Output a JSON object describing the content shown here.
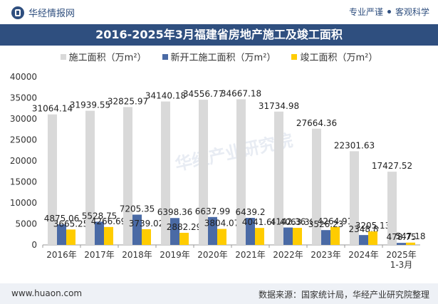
{
  "header": {
    "brand": "华经情报网",
    "tag1": "专业严谨",
    "tag2": "客观科学"
  },
  "footer": {
    "website": "www.huaon.com",
    "source": "数据来源：国家统计局，华经产业研究院整理"
  },
  "watermark": "华经产业研究院",
  "colors": {
    "series1": "#d9d9d9",
    "series2": "#4a6aa5",
    "series3": "#ffcc00",
    "title_bg": "#2f4f7f"
  },
  "chart_data": {
    "type": "bar",
    "title": "2016-2025年3月福建省房地产施工及竣工面积",
    "categories": [
      "2016年",
      "2017年",
      "2018年",
      "2019年",
      "2020年",
      "2021年",
      "2022年",
      "2023年",
      "2024年",
      "2025年 1-3月"
    ],
    "series": [
      {
        "name": "施工面积（万m²）",
        "values": [
          31064.14,
          31939.55,
          32825.97,
          34140.18,
          34556.77,
          34667.18,
          31734.98,
          27664.36,
          22301.63,
          17427.52
        ]
      },
      {
        "name": "新开工施工面积（万m²）",
        "values": [
          4875.06,
          5528.75,
          7205.35,
          6398.36,
          6637.99,
          6439.2,
          4142.36,
          3526.23,
          2348.8,
          478.75
        ]
      },
      {
        "name": "竣工面积（万m²）",
        "values": [
          3665.25,
          4266.69,
          3739.02,
          2882.29,
          3804.07,
          4041.68,
          4063.38,
          4264.91,
          3205.13,
          547.18
        ]
      }
    ],
    "ylim": [
      0,
      40000
    ],
    "yticks": [
      0,
      5000,
      10000,
      15000,
      20000,
      25000,
      30000,
      35000,
      40000
    ],
    "legend_position": "top",
    "grid": false
  }
}
